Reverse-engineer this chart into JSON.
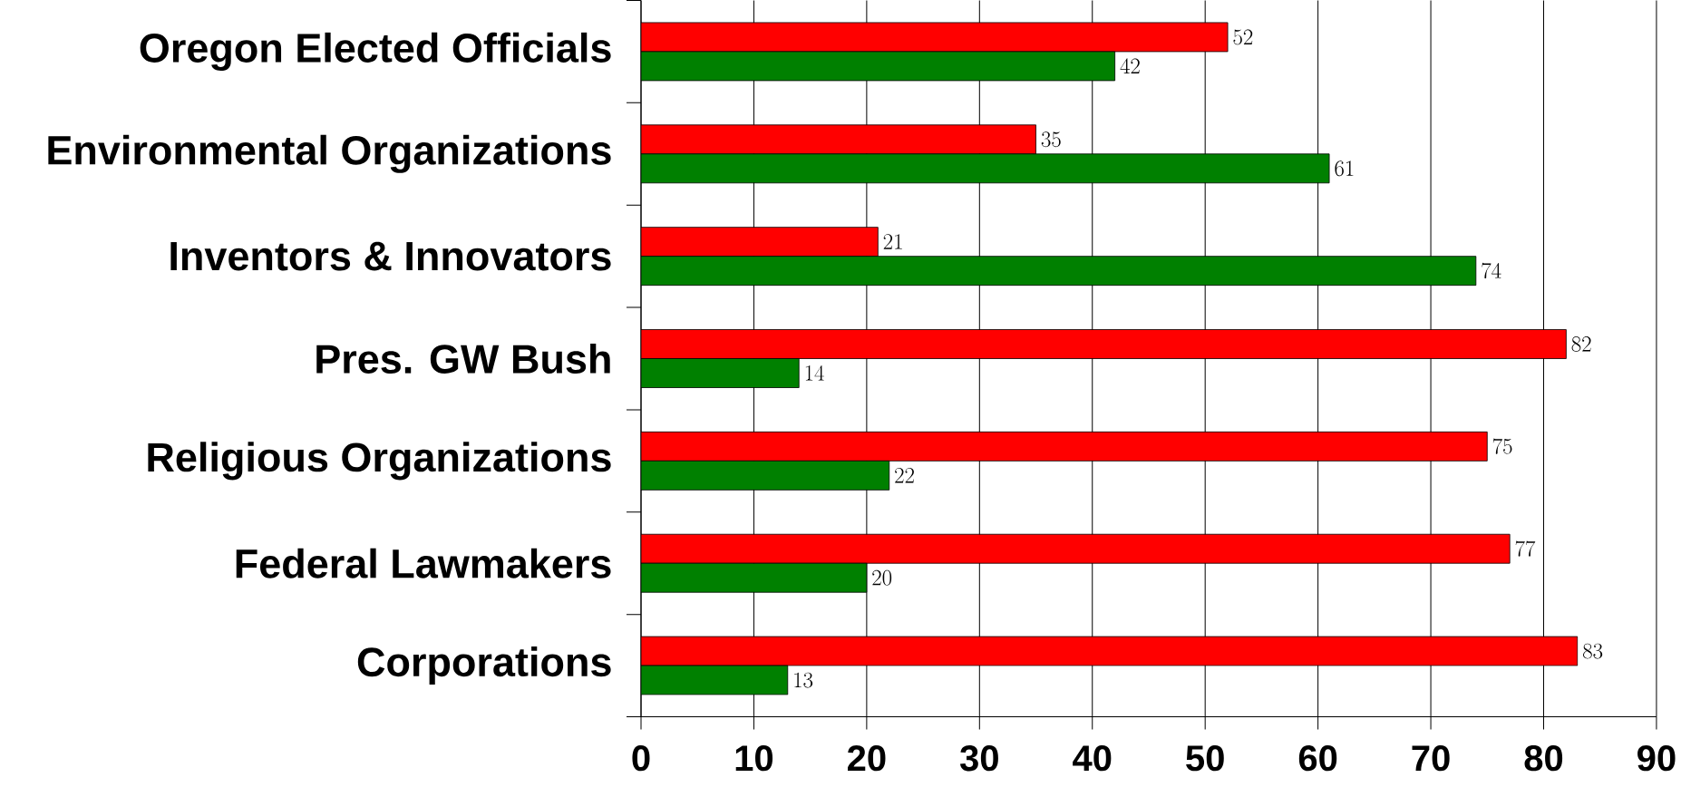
{
  "chart_data": {
    "type": "bar",
    "orientation": "horizontal",
    "categories": [
      "Oregon Elected Officials",
      "Environmental Organizations",
      "Inventors & Innovators",
      "Pres. GW Bush",
      "Religious Organizations",
      "Federal Lawmakers",
      "Corporations"
    ],
    "series": [
      {
        "color": "#ff0000",
        "values": [
          52,
          35,
          21,
          82,
          75,
          77,
          83
        ]
      },
      {
        "color": "#008000",
        "values": [
          42,
          61,
          74,
          14,
          22,
          20,
          13
        ]
      }
    ],
    "xlim": [
      0,
      90
    ],
    "xticks": [
      0,
      10,
      20,
      30,
      40,
      50,
      60,
      70,
      80,
      90
    ],
    "grid": "x",
    "data_labels": true
  }
}
